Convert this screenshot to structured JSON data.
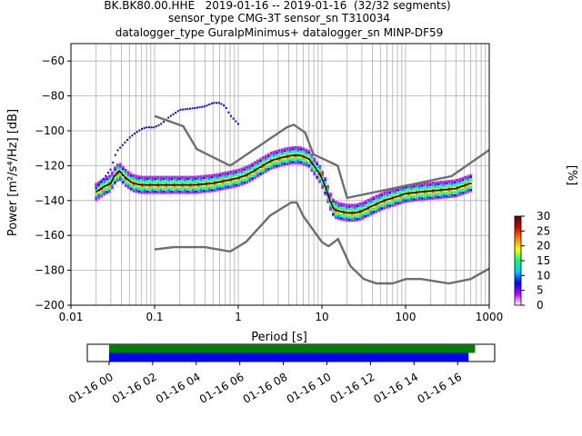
{
  "chart_data": [
    {
      "type": "heatmap",
      "subtype": "ppsd",
      "title_lines": [
        "BK.BK80.00.HHE   2019-01-16 -- 2019-01-16  (32/32 segments)",
        "sensor_type CMG-3T sensor_sn T310034",
        "datalogger_type GuralpMinimus+ datalogger_sn MINP-DF59"
      ],
      "xlabel": "Period [s]",
      "ylabel": "Power [m²/s⁴/Hz] [dB]",
      "xscale": "log",
      "xlim": [
        0.01,
        1000
      ],
      "ylim": [
        -200,
        -50
      ],
      "x_ticks": [
        {
          "value": 0.01,
          "label": "0.01"
        },
        {
          "value": 0.1,
          "label": "0.1"
        },
        {
          "value": 1,
          "label": "1"
        },
        {
          "value": 10,
          "label": "10"
        },
        {
          "value": 100,
          "label": "100"
        },
        {
          "value": 1000,
          "label": "1000"
        }
      ],
      "y_ticks": [
        -60,
        -80,
        -100,
        -120,
        -140,
        -160,
        -180,
        -200
      ],
      "grid": true,
      "colorbar": {
        "label": "[%]",
        "range": [
          0,
          30
        ],
        "ticks": [
          0,
          5,
          10,
          15,
          20,
          25,
          30
        ],
        "colors": [
          "#ffffff",
          "#c000ff",
          "#0000ff",
          "#00c8ff",
          "#00ff80",
          "#ffff00",
          "#ff8000",
          "#d00000",
          "#600000"
        ]
      },
      "noise_models": {
        "color": "#6e6e6e",
        "high": {
          "x": [
            0.1,
            0.22,
            0.32,
            0.8,
            3.8,
            4.6,
            6.3,
            7.9,
            15.4,
            20,
            354.8,
            1000
          ],
          "y": [
            -91.5,
            -97.4,
            -110.5,
            -120,
            -98,
            -96.5,
            -101,
            -113.5,
            -120,
            -138.5,
            -126,
            -111
          ]
        },
        "low": {
          "x": [
            0.1,
            0.17,
            0.4,
            0.8,
            1.24,
            2.4,
            4.3,
            5.0,
            6.0,
            10.0,
            12.0,
            15.6,
            21.9,
            31.6,
            45,
            70,
            101,
            154,
            328,
            600,
            1000
          ],
          "y": [
            -168,
            -166.7,
            -166.7,
            -169.2,
            -163.7,
            -148.6,
            -141.1,
            -141.1,
            -149,
            -163.8,
            -166.2,
            -162.1,
            -177.5,
            -185,
            -187.5,
            -187.5,
            -185,
            -185,
            -187.5,
            -185,
            -179
          ]
        }
      },
      "ppsd_mode": {
        "color": "#000000",
        "x": [
          0.02,
          0.025,
          0.03,
          0.033,
          0.038,
          0.045,
          0.055,
          0.07,
          0.1,
          0.15,
          0.2,
          0.3,
          0.5,
          0.8,
          1.0,
          1.3,
          1.8,
          2.5,
          3.5,
          4.5,
          5.5,
          7,
          8,
          9.5,
          11,
          12.5,
          14,
          16,
          20,
          25,
          30,
          40,
          55,
          75,
          100,
          150,
          250,
          400,
          600
        ],
        "y": [
          -135,
          -132,
          -130,
          -126,
          -123,
          -127,
          -130,
          -131,
          -131,
          -131,
          -131,
          -131,
          -130,
          -128,
          -127,
          -125,
          -121,
          -117,
          -115,
          -114,
          -114,
          -116,
          -120,
          -125,
          -132,
          -140,
          -145,
          -146,
          -147,
          -147,
          -146,
          -143,
          -140,
          -138,
          -136,
          -135,
          -134,
          -133,
          -130
        ]
      },
      "ppsd_upper_cloud": {
        "color": "#0000ff",
        "x": [
          0.02,
          0.025,
          0.03,
          0.035,
          0.04,
          0.05,
          0.06,
          0.07,
          0.08,
          0.1,
          0.12,
          0.15,
          0.2,
          0.3,
          0.4,
          0.5,
          0.6,
          0.7,
          0.8,
          1.0
        ],
        "y": [
          -133,
          -127,
          -122,
          -112,
          -109,
          -104,
          -101,
          -99,
          -98,
          -98,
          -96,
          -92,
          -88,
          -87,
          -86,
          -84,
          -84,
          -86,
          -91,
          -96
        ]
      },
      "ppsd_spread_db": 4.5
    },
    {
      "type": "timeline",
      "x_tick_labels": [
        "01-16 00",
        "01-16 02",
        "01-16 04",
        "01-16 06",
        "01-16 08",
        "01-16 10",
        "01-16 12",
        "01-16 14",
        "01-16 16"
      ],
      "x_range_hours": [
        -1,
        17.7
      ],
      "rows": [
        {
          "color": "#008000",
          "start_hour": 0,
          "end_hour": 16.8
        },
        {
          "color": "#0000ff",
          "start_hour": 0,
          "end_hour": 16.5
        }
      ]
    }
  ]
}
